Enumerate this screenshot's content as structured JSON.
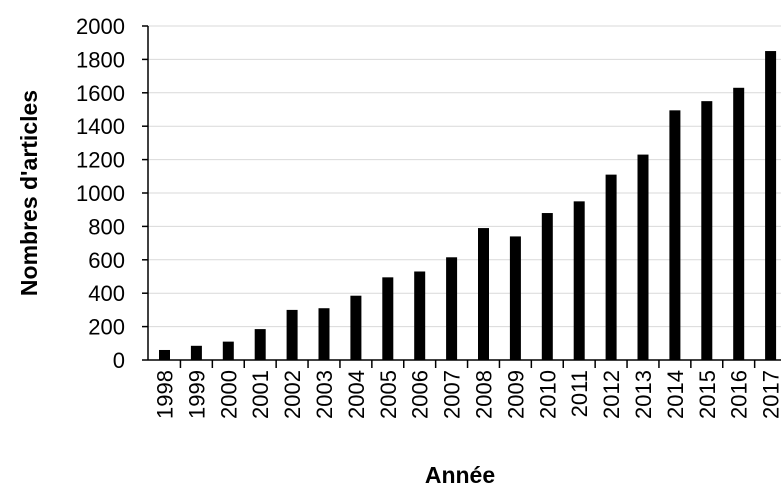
{
  "chart_data": {
    "type": "bar",
    "title": "",
    "xlabel": "Année",
    "ylabel": "Nombres d'articles",
    "ylim": [
      0,
      2000
    ],
    "yticks": [
      0,
      200,
      400,
      600,
      800,
      1000,
      1200,
      1400,
      1600,
      1800,
      2000
    ],
    "grid": true,
    "legend": "none",
    "colors": {
      "bar": "#000000",
      "grid": "#d9d9d9",
      "axis": "#000000"
    },
    "categories": [
      "1998",
      "1999",
      "2000",
      "2001",
      "2002",
      "2003",
      "2004",
      "2005",
      "2006",
      "2007",
      "2008",
      "2009",
      "2010",
      "2011",
      "2012",
      "2013",
      "2014",
      "2015",
      "2016",
      "2017"
    ],
    "values": [
      60,
      85,
      110,
      185,
      300,
      310,
      385,
      495,
      530,
      615,
      790,
      740,
      880,
      950,
      1110,
      1230,
      1495,
      1550,
      1630,
      1850
    ]
  }
}
